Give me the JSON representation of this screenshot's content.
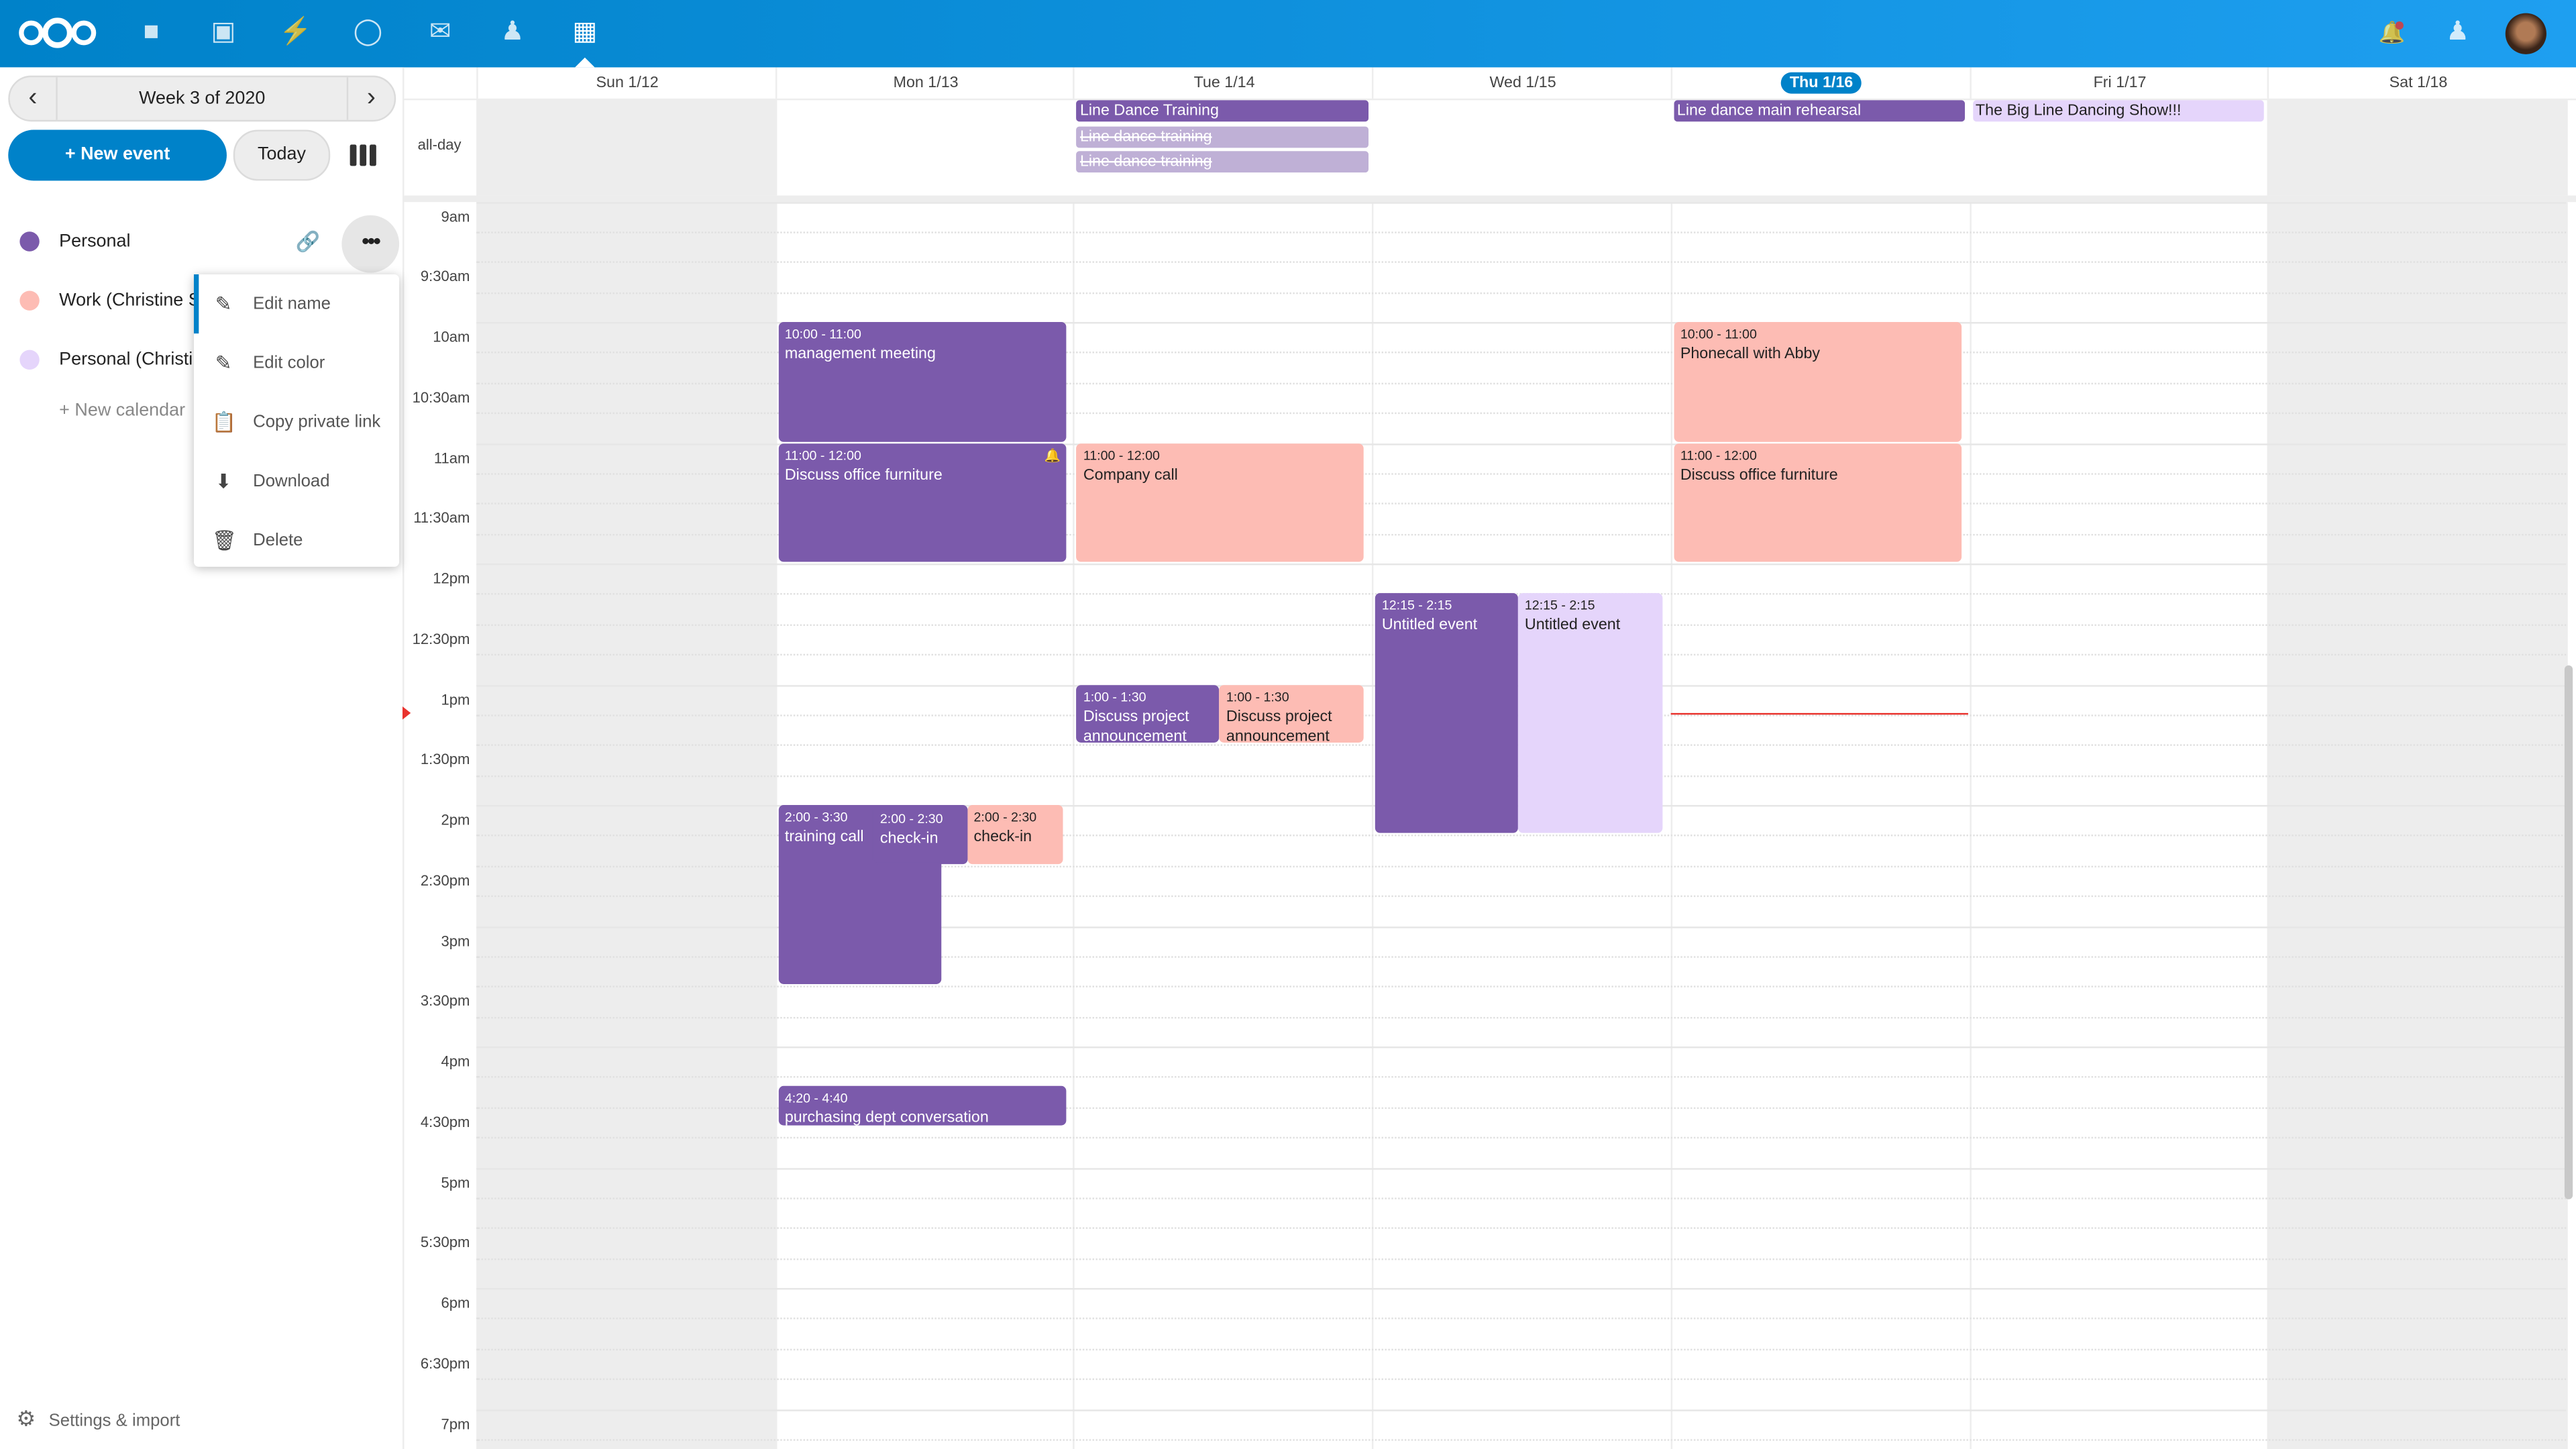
{
  "colors": {
    "accent": "#0082c9",
    "personal": "#7b5aab",
    "work": "#fdbcb4",
    "personal_shared": "#e5d5fb",
    "now": "#e9322d"
  },
  "header": {
    "apps": [
      "logo",
      "files-icon",
      "photos-icon",
      "activity-icon",
      "talk-icon",
      "mail-icon",
      "contacts-icon",
      "calendar-icon"
    ],
    "active": "calendar-icon",
    "right": [
      "notifications-icon",
      "contacts-menu-icon",
      "avatar"
    ]
  },
  "sidebar": {
    "week_label": "Week 3 of 2020",
    "new_event": "+ New event",
    "today": "Today",
    "calendars": [
      {
        "name": "Personal",
        "color": "#7b5aab"
      },
      {
        "name": "Work (Christine Schott)",
        "color": "#fdbcb4"
      },
      {
        "name": "Personal (Christine Schott)",
        "color": "#e5d5fb"
      }
    ],
    "new_calendar": "+ New calendar",
    "settings": "Settings & import",
    "menu": [
      {
        "label": "Edit name",
        "icon": "pencil-icon"
      },
      {
        "label": "Edit color",
        "icon": "pencil-icon"
      },
      {
        "label": "Copy private link",
        "icon": "clipboard-icon"
      },
      {
        "label": "Download",
        "icon": "download-icon"
      },
      {
        "label": "Delete",
        "icon": "trash-icon"
      }
    ]
  },
  "calendar": {
    "days": [
      "Sun 1/12",
      "Mon 1/13",
      "Tue 1/14",
      "Wed 1/15",
      "Thu 1/16",
      "Fri 1/17",
      "Sat 1/18"
    ],
    "today_index": 4,
    "allday_label": "all-day",
    "times": [
      "9am",
      "9:30am",
      "10am",
      "10:30am",
      "11am",
      "11:30am",
      "12pm",
      "12:30pm",
      "1pm",
      "1:30pm",
      "2pm",
      "2:30pm",
      "3pm",
      "3:30pm",
      "4pm",
      "4:30pm",
      "5pm",
      "5:30pm",
      "6pm",
      "6:30pm",
      "7pm"
    ],
    "now": "13:14",
    "allday_events": [
      {
        "day": 2,
        "title": "Line Dance Training",
        "calendar": "personal",
        "cancelled": false
      },
      {
        "day": 2,
        "title": "Line dance training",
        "calendar": "personal",
        "cancelled": true
      },
      {
        "day": 2,
        "title": "Line dance training",
        "calendar": "personal",
        "cancelled": true
      },
      {
        "day": 4,
        "title": "Line dance main rehearsal",
        "calendar": "personal",
        "cancelled": false
      },
      {
        "day": 5,
        "title": "The Big Line Dancing Show!!!",
        "calendar": "personal_shared",
        "cancelled": false
      }
    ],
    "events": [
      {
        "day": 1,
        "start": 10,
        "end": 11,
        "time": "10:00 - 11:00",
        "title": "management meeting",
        "calendar": "personal"
      },
      {
        "day": 1,
        "start": 11,
        "end": 12,
        "time": "11:00 - 12:00",
        "title": "Discuss office furniture",
        "calendar": "personal",
        "alarm": true
      },
      {
        "day": 1,
        "start": 14,
        "end": 15.5,
        "time": "2:00 - 3:30",
        "title": "training call",
        "calendar": "personal"
      },
      {
        "day": 1,
        "start": 14,
        "end": 14.5,
        "time": "2:00 - 2:30",
        "title": "check-in",
        "calendar": "personal"
      },
      {
        "day": 1,
        "start": 14,
        "end": 14.5,
        "time": "2:00 - 2:30",
        "title": "check-in",
        "calendar": "work"
      },
      {
        "day": 1,
        "start": 16.333,
        "end": 16.667,
        "time": "4:20 - 4:40",
        "title": "purchasing dept conversation",
        "calendar": "personal"
      },
      {
        "day": 2,
        "start": 11,
        "end": 12,
        "time": "11:00 - 12:00",
        "title": "Company call",
        "calendar": "work"
      },
      {
        "day": 2,
        "start": 13,
        "end": 13.5,
        "time": "1:00 - 1:30",
        "title": "Discuss project announcement",
        "calendar": "personal"
      },
      {
        "day": 2,
        "start": 13,
        "end": 13.5,
        "time": "1:00 - 1:30",
        "title": "Discuss project announcement",
        "calendar": "work"
      },
      {
        "day": 3,
        "start": 12.25,
        "end": 14.25,
        "time": "12:15 - 2:15",
        "title": "Untitled event",
        "calendar": "personal"
      },
      {
        "day": 3,
        "start": 12.25,
        "end": 14.25,
        "time": "12:15 - 2:15",
        "title": "Untitled event",
        "calendar": "personal_shared"
      },
      {
        "day": 4,
        "start": 10,
        "end": 11,
        "time": "10:00 - 11:00",
        "title": "Phonecall with Abby",
        "calendar": "work"
      },
      {
        "day": 4,
        "start": 11,
        "end": 12,
        "time": "11:00 - 12:00",
        "title": "Discuss office furniture",
        "calendar": "work"
      }
    ]
  }
}
